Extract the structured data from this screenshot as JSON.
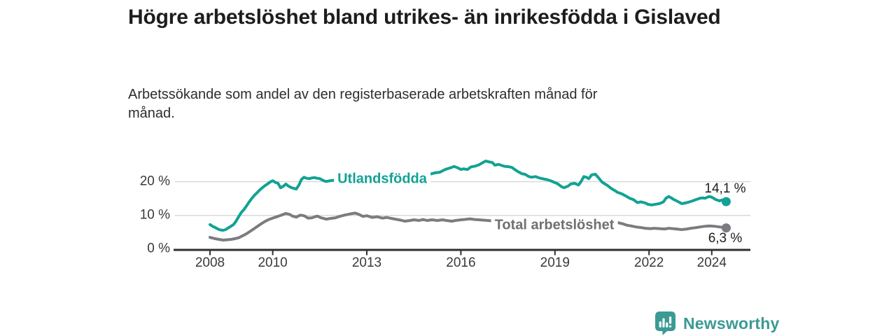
{
  "header": {
    "title": "Högre arbetslöshet bland utrikes- än inrikesfödda i Gislaved",
    "subtitle": "Arbetssökande som andel av den registerbaserade arbetskraften månad för månad."
  },
  "footer": {
    "brand": "Newsworthy"
  },
  "colors": {
    "accent_teal": "#12a294",
    "series_gray": "#7b7b80",
    "label_gray": "#6f6f74",
    "brand_teal": "#3b9a93",
    "axis": "#2f2f2f",
    "grid": "#d9d9d9",
    "text_dark": "#1d1d1d"
  },
  "chart_data": {
    "type": "line",
    "title": "Högre arbetslöshet bland utrikes- än inrikesfödda i Gislaved",
    "subtitle": "Arbetssökande som andel av den registerbaserade arbetskraften månad för månad.",
    "unit": "%",
    "x_axis": {
      "range": [
        2007.85,
        2025.25
      ],
      "ticks": [
        {
          "value": 2008,
          "label": "2008"
        },
        {
          "value": 2010,
          "label": "2010"
        },
        {
          "value": 2013,
          "label": "2013"
        },
        {
          "value": 2016,
          "label": "2016"
        },
        {
          "value": 2019,
          "label": "2019"
        },
        {
          "value": 2022,
          "label": "2022"
        },
        {
          "value": 2024,
          "label": "2024"
        }
      ]
    },
    "y_axis": {
      "range": [
        0,
        27
      ],
      "ticks": [
        {
          "value": 0,
          "label": "0 %"
        },
        {
          "value": 10,
          "label": "10 %"
        },
        {
          "value": 20,
          "label": "20 %"
        }
      ]
    },
    "grid": true,
    "legend_position": "inline-on-line",
    "style": {
      "grid_color": "#d9d9d9",
      "axis_color": "#2f2f2f"
    },
    "series": [
      {
        "name": "Utlandsfödda",
        "color": "#12a294",
        "end_label": "14,1 %",
        "last_value": 14.1,
        "points": [
          [
            2008.0,
            7.3
          ],
          [
            2008.08,
            6.8
          ],
          [
            2008.17,
            6.4
          ],
          [
            2008.25,
            6.0
          ],
          [
            2008.33,
            5.7
          ],
          [
            2008.42,
            5.6
          ],
          [
            2008.5,
            5.8
          ],
          [
            2008.58,
            6.3
          ],
          [
            2008.67,
            6.8
          ],
          [
            2008.75,
            7.3
          ],
          [
            2008.83,
            8.3
          ],
          [
            2008.92,
            9.7
          ],
          [
            2009.0,
            10.9
          ],
          [
            2009.08,
            11.7
          ],
          [
            2009.17,
            12.9
          ],
          [
            2009.25,
            14.0
          ],
          [
            2009.33,
            15.0
          ],
          [
            2009.42,
            16.0
          ],
          [
            2009.5,
            16.7
          ],
          [
            2009.58,
            17.5
          ],
          [
            2009.67,
            18.2
          ],
          [
            2009.75,
            18.8
          ],
          [
            2009.83,
            19.3
          ],
          [
            2009.92,
            19.9
          ],
          [
            2010.0,
            20.3
          ],
          [
            2010.08,
            19.8
          ],
          [
            2010.17,
            19.5
          ],
          [
            2010.25,
            18.2
          ],
          [
            2010.33,
            18.6
          ],
          [
            2010.42,
            19.3
          ],
          [
            2010.5,
            18.7
          ],
          [
            2010.58,
            18.3
          ],
          [
            2010.67,
            18.0
          ],
          [
            2010.75,
            17.8
          ],
          [
            2010.83,
            18.9
          ],
          [
            2010.92,
            20.7
          ],
          [
            2011.0,
            21.3
          ],
          [
            2011.08,
            21.0
          ],
          [
            2011.17,
            20.9
          ],
          [
            2011.25,
            21.1
          ],
          [
            2011.33,
            21.2
          ],
          [
            2011.42,
            21.0
          ],
          [
            2011.5,
            20.9
          ],
          [
            2011.58,
            20.5
          ],
          [
            2011.67,
            20.1
          ],
          [
            2011.75,
            20.1
          ],
          [
            2011.83,
            20.3
          ],
          [
            2011.92,
            20.4
          ],
          [
            2012.0,
            20.2
          ],
          [
            2012.08,
            20.1
          ],
          [
            2012.17,
            20.3
          ],
          [
            2012.25,
            20.5
          ],
          [
            2012.5,
            20.6
          ],
          [
            2012.75,
            20.4
          ],
          [
            2013.0,
            20.6
          ],
          [
            2013.25,
            20.8
          ],
          [
            2013.5,
            20.7
          ],
          [
            2013.75,
            20.9
          ],
          [
            2014.0,
            21.1
          ],
          [
            2014.25,
            21.3
          ],
          [
            2014.5,
            21.6
          ],
          [
            2014.75,
            21.9
          ],
          [
            2015.0,
            22.2
          ],
          [
            2015.17,
            22.6
          ],
          [
            2015.33,
            22.8
          ],
          [
            2015.5,
            23.6
          ],
          [
            2015.67,
            24.1
          ],
          [
            2015.79,
            24.5
          ],
          [
            2015.92,
            24.0
          ],
          [
            2016.0,
            23.6
          ],
          [
            2016.08,
            23.8
          ],
          [
            2016.21,
            23.6
          ],
          [
            2016.33,
            24.4
          ],
          [
            2016.46,
            24.6
          ],
          [
            2016.58,
            25.0
          ],
          [
            2016.67,
            25.5
          ],
          [
            2016.79,
            26.1
          ],
          [
            2016.92,
            25.8
          ],
          [
            2017.0,
            25.7
          ],
          [
            2017.08,
            24.9
          ],
          [
            2017.21,
            25.1
          ],
          [
            2017.33,
            24.7
          ],
          [
            2017.42,
            24.5
          ],
          [
            2017.54,
            24.4
          ],
          [
            2017.63,
            24.2
          ],
          [
            2017.75,
            23.4
          ],
          [
            2017.83,
            22.9
          ],
          [
            2017.96,
            22.3
          ],
          [
            2018.04,
            22.2
          ],
          [
            2018.17,
            21.5
          ],
          [
            2018.25,
            21.3
          ],
          [
            2018.38,
            21.5
          ],
          [
            2018.5,
            21.1
          ],
          [
            2018.63,
            20.8
          ],
          [
            2018.75,
            20.6
          ],
          [
            2018.88,
            20.2
          ],
          [
            2019.0,
            19.7
          ],
          [
            2019.08,
            19.4
          ],
          [
            2019.21,
            18.5
          ],
          [
            2019.29,
            18.2
          ],
          [
            2019.42,
            18.7
          ],
          [
            2019.5,
            19.3
          ],
          [
            2019.63,
            19.5
          ],
          [
            2019.75,
            19.0
          ],
          [
            2019.83,
            20.0
          ],
          [
            2019.92,
            21.5
          ],
          [
            2020.0,
            21.3
          ],
          [
            2020.08,
            20.9
          ],
          [
            2020.17,
            22.0
          ],
          [
            2020.29,
            22.2
          ],
          [
            2020.42,
            20.8
          ],
          [
            2020.5,
            19.9
          ],
          [
            2020.58,
            19.4
          ],
          [
            2020.67,
            18.9
          ],
          [
            2020.79,
            18.0
          ],
          [
            2020.92,
            17.3
          ],
          [
            2021.0,
            16.8
          ],
          [
            2021.13,
            16.4
          ],
          [
            2021.25,
            15.8
          ],
          [
            2021.38,
            15.1
          ],
          [
            2021.5,
            14.7
          ],
          [
            2021.63,
            13.8
          ],
          [
            2021.75,
            14.0
          ],
          [
            2021.88,
            13.7
          ],
          [
            2021.96,
            13.3
          ],
          [
            2022.08,
            13.1
          ],
          [
            2022.21,
            13.3
          ],
          [
            2022.33,
            13.5
          ],
          [
            2022.46,
            14.0
          ],
          [
            2022.54,
            15.1
          ],
          [
            2022.63,
            15.6
          ],
          [
            2022.71,
            15.2
          ],
          [
            2022.79,
            14.7
          ],
          [
            2022.88,
            14.3
          ],
          [
            2022.96,
            13.9
          ],
          [
            2023.04,
            13.5
          ],
          [
            2023.17,
            13.7
          ],
          [
            2023.29,
            14.0
          ],
          [
            2023.42,
            14.4
          ],
          [
            2023.5,
            14.7
          ],
          [
            2023.63,
            15.1
          ],
          [
            2023.71,
            15.2
          ],
          [
            2023.79,
            15.1
          ],
          [
            2023.92,
            15.6
          ],
          [
            2024.0,
            15.4
          ],
          [
            2024.13,
            14.7
          ],
          [
            2024.25,
            14.3
          ],
          [
            2024.33,
            14.6
          ],
          [
            2024.46,
            14.1
          ]
        ]
      },
      {
        "name": "Total arbetslöshet",
        "color": "#7b7b80",
        "end_label": "6,3 %",
        "last_value": 6.3,
        "points": [
          [
            2008.0,
            3.5
          ],
          [
            2008.08,
            3.3
          ],
          [
            2008.17,
            3.1
          ],
          [
            2008.29,
            2.9
          ],
          [
            2008.42,
            2.7
          ],
          [
            2008.54,
            2.8
          ],
          [
            2008.67,
            2.9
          ],
          [
            2008.79,
            3.1
          ],
          [
            2008.92,
            3.4
          ],
          [
            2009.0,
            3.8
          ],
          [
            2009.13,
            4.4
          ],
          [
            2009.25,
            5.1
          ],
          [
            2009.38,
            5.9
          ],
          [
            2009.5,
            6.7
          ],
          [
            2009.63,
            7.5
          ],
          [
            2009.75,
            8.2
          ],
          [
            2009.88,
            8.8
          ],
          [
            2010.0,
            9.2
          ],
          [
            2010.13,
            9.6
          ],
          [
            2010.25,
            10.0
          ],
          [
            2010.42,
            10.6
          ],
          [
            2010.54,
            10.3
          ],
          [
            2010.63,
            9.8
          ],
          [
            2010.75,
            9.5
          ],
          [
            2010.88,
            10.1
          ],
          [
            2011.0,
            9.9
          ],
          [
            2011.13,
            9.2
          ],
          [
            2011.25,
            9.3
          ],
          [
            2011.42,
            9.8
          ],
          [
            2011.54,
            9.3
          ],
          [
            2011.71,
            8.9
          ],
          [
            2011.83,
            9.1
          ],
          [
            2012.0,
            9.3
          ],
          [
            2012.13,
            9.7
          ],
          [
            2012.29,
            10.1
          ],
          [
            2012.5,
            10.5
          ],
          [
            2012.63,
            10.7
          ],
          [
            2012.75,
            10.3
          ],
          [
            2012.88,
            9.7
          ],
          [
            2013.0,
            9.9
          ],
          [
            2013.17,
            9.4
          ],
          [
            2013.33,
            9.6
          ],
          [
            2013.5,
            9.2
          ],
          [
            2013.63,
            9.4
          ],
          [
            2013.79,
            9.1
          ],
          [
            2013.92,
            8.9
          ],
          [
            2014.08,
            8.6
          ],
          [
            2014.21,
            8.3
          ],
          [
            2014.38,
            8.5
          ],
          [
            2014.5,
            8.7
          ],
          [
            2014.67,
            8.5
          ],
          [
            2014.79,
            8.8
          ],
          [
            2014.92,
            8.5
          ],
          [
            2015.08,
            8.7
          ],
          [
            2015.25,
            8.5
          ],
          [
            2015.42,
            8.7
          ],
          [
            2015.54,
            8.5
          ],
          [
            2015.71,
            8.3
          ],
          [
            2015.83,
            8.5
          ],
          [
            2016.0,
            8.7
          ],
          [
            2016.13,
            8.8
          ],
          [
            2016.29,
            9.0
          ],
          [
            2016.42,
            8.8
          ],
          [
            2016.58,
            8.7
          ],
          [
            2017.0,
            8.4
          ],
          [
            2017.5,
            8.1
          ],
          [
            2018.0,
            7.8
          ],
          [
            2018.5,
            7.6
          ],
          [
            2019.0,
            7.4
          ],
          [
            2019.5,
            7.5
          ],
          [
            2020.0,
            8.1
          ],
          [
            2020.25,
            8.8
          ],
          [
            2020.5,
            8.8
          ],
          [
            2020.75,
            8.5
          ],
          [
            2020.92,
            8.1
          ],
          [
            2021.04,
            7.8
          ],
          [
            2021.17,
            7.5
          ],
          [
            2021.29,
            7.1
          ],
          [
            2021.42,
            6.9
          ],
          [
            2021.58,
            6.6
          ],
          [
            2021.75,
            6.4
          ],
          [
            2021.88,
            6.2
          ],
          [
            2022.04,
            6.1
          ],
          [
            2022.17,
            6.2
          ],
          [
            2022.33,
            6.1
          ],
          [
            2022.5,
            6.0
          ],
          [
            2022.63,
            6.2
          ],
          [
            2022.75,
            6.1
          ],
          [
            2022.88,
            6.0
          ],
          [
            2023.04,
            5.8
          ],
          [
            2023.21,
            6.0
          ],
          [
            2023.33,
            6.2
          ],
          [
            2023.5,
            6.4
          ],
          [
            2023.63,
            6.6
          ],
          [
            2023.79,
            6.8
          ],
          [
            2023.92,
            6.9
          ],
          [
            2024.08,
            6.8
          ],
          [
            2024.25,
            6.6
          ],
          [
            2024.46,
            6.3
          ]
        ]
      }
    ]
  }
}
